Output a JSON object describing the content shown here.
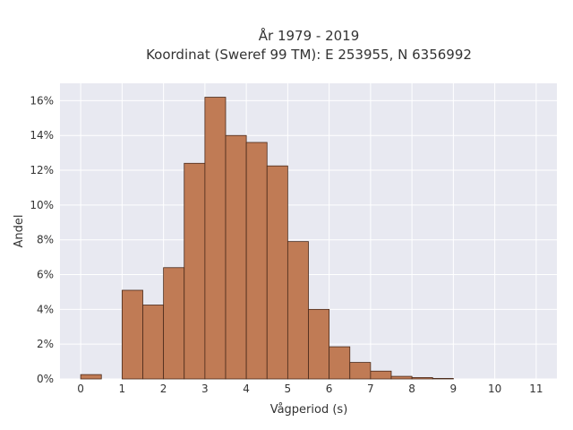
{
  "chart_data": {
    "type": "bar",
    "title_line1": "År 1979 - 2019",
    "title_line2": "Koordinat (Sweref 99 TM): E 253955, N 6356992",
    "xlabel": "Vågperiod (s)",
    "ylabel": "Andel",
    "bin_width": 0.5,
    "bins": [
      {
        "start": 0.0,
        "value": 0.25
      },
      {
        "start": 0.5,
        "value": 0.0
      },
      {
        "start": 1.0,
        "value": 5.1
      },
      {
        "start": 1.5,
        "value": 4.25
      },
      {
        "start": 2.0,
        "value": 6.4
      },
      {
        "start": 2.5,
        "value": 12.4
      },
      {
        "start": 3.0,
        "value": 16.2
      },
      {
        "start": 3.5,
        "value": 14.0
      },
      {
        "start": 4.0,
        "value": 13.6
      },
      {
        "start": 4.5,
        "value": 12.25
      },
      {
        "start": 5.0,
        "value": 7.9
      },
      {
        "start": 5.5,
        "value": 4.0
      },
      {
        "start": 6.0,
        "value": 1.85
      },
      {
        "start": 6.5,
        "value": 0.95
      },
      {
        "start": 7.0,
        "value": 0.45
      },
      {
        "start": 7.5,
        "value": 0.15
      },
      {
        "start": 8.0,
        "value": 0.08
      },
      {
        "start": 8.5,
        "value": 0.03
      }
    ],
    "xlim": [
      -0.5,
      11.5
    ],
    "ylim": [
      0,
      17
    ],
    "x_ticks": [
      "0",
      "1",
      "2",
      "3",
      "4",
      "5",
      "6",
      "7",
      "8",
      "9",
      "10",
      "11"
    ],
    "y_ticks": [
      "0%",
      "2%",
      "4%",
      "6%",
      "8%",
      "10%",
      "12%",
      "14%",
      "16%"
    ],
    "grid": true,
    "colors": {
      "bar": "#c07b55",
      "bar_edge": "#4a2a1a",
      "plot_bg": "#e8e9f1",
      "grid": "#ffffff"
    }
  }
}
